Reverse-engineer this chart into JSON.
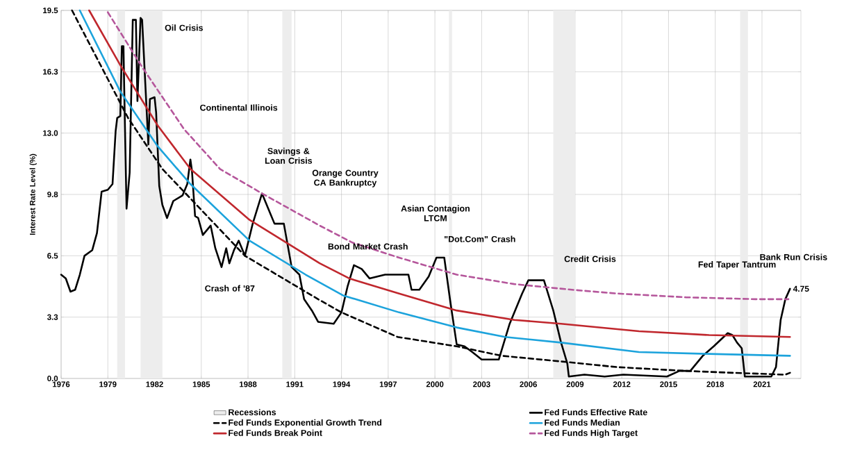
{
  "chart_data": {
    "type": "line",
    "ylabel": "Interest Rate Level (%)",
    "xlim": [
      1976,
      2023.5
    ],
    "ylim": [
      0,
      19.5
    ],
    "xticks": [
      1976,
      1979,
      1982,
      1985,
      1988,
      1991,
      1994,
      1997,
      2000,
      2003,
      2006,
      2009,
      2012,
      2015,
      2018,
      2021
    ],
    "yticks": [
      {
        "value": 0,
        "label": "0.0"
      },
      {
        "value": 3.25,
        "label": "3.3"
      },
      {
        "value": 6.5,
        "label": "6.5"
      },
      {
        "value": 9.75,
        "label": "9.8"
      },
      {
        "value": 13,
        "label": "13.0"
      },
      {
        "value": 16.25,
        "label": "16.3"
      },
      {
        "value": 19.5,
        "label": "19.5"
      }
    ],
    "grid": true,
    "legend": "bottom",
    "bands": [
      {
        "axis": "x",
        "from": 1979.6,
        "to": 1980.1,
        "label": "Recessions",
        "color": "#ededed"
      },
      {
        "axis": "x",
        "from": 1981.1,
        "to": 1982.5,
        "color": "#ededed"
      },
      {
        "axis": "x",
        "from": 1990.2,
        "to": 1990.8,
        "color": "#ededed"
      },
      {
        "axis": "x",
        "from": 2000.9,
        "to": 2001.1,
        "color": "#ededed"
      },
      {
        "axis": "x",
        "from": 2007.6,
        "to": 2009.0,
        "color": "#ededed"
      },
      {
        "axis": "x",
        "from": 2019.6,
        "to": 2020.1,
        "color": "#ededed"
      }
    ],
    "series": [
      {
        "name": "Fed Funds Effective Rate",
        "color": "#000000",
        "line_style": "solid",
        "x": [
          1976.0,
          1976.3,
          1976.6,
          1976.9,
          1977.2,
          1977.5,
          1978.0,
          1978.3,
          1978.6,
          1979.0,
          1979.3,
          1979.5,
          1979.6,
          1979.8,
          1979.9,
          1980.0,
          1980.2,
          1980.4,
          1980.6,
          1980.8,
          1980.9,
          1981.1,
          1981.2,
          1981.6,
          1981.7,
          1982.0,
          1982.1,
          1982.3,
          1982.5,
          1982.8,
          1983.2,
          1983.8,
          1984.1,
          1984.3,
          1984.4,
          1984.6,
          1984.8,
          1985.1,
          1985.6,
          1985.9,
          1986.3,
          1986.6,
          1986.8,
          1987.1,
          1987.4,
          1987.8,
          1988.3,
          1988.9,
          1989.3,
          1989.7,
          1990.3,
          1990.8,
          1991.3,
          1991.6,
          1992.1,
          1992.5,
          1993.5,
          1994.0,
          1994.4,
          1994.8,
          1995.3,
          1995.8,
          1996.8,
          1997.0,
          1998.3,
          1998.5,
          1999.0,
          1999.6,
          2000.1,
          2000.6,
          2001.0,
          2001.4,
          2001.9,
          2002.4,
          2003.0,
          2004.1,
          2004.8,
          2005.6,
          2006.0,
          2007.0,
          2007.6,
          2008.1,
          2008.5,
          2008.6,
          2009.6,
          2010.9,
          2012.1,
          2014.9,
          2015.7,
          2016.4,
          2017.2,
          2017.9,
          2018.8,
          2019.1,
          2019.4,
          2019.7,
          2019.9,
          2021.6,
          2021.9,
          2022.2,
          2022.5,
          2022.8
        ],
        "values": [
          5.5,
          5.3,
          4.6,
          4.7,
          5.5,
          6.5,
          6.8,
          7.7,
          9.9,
          10.0,
          10.3,
          13.1,
          13.8,
          13.9,
          17.6,
          17.6,
          9.0,
          10.9,
          19.0,
          19.0,
          14.7,
          19.1,
          19.0,
          12.4,
          14.8,
          14.9,
          14.1,
          10.2,
          9.2,
          8.5,
          9.4,
          9.7,
          10.3,
          11.6,
          11.0,
          8.6,
          8.5,
          7.6,
          8.1,
          6.9,
          5.9,
          6.9,
          6.1,
          6.8,
          7.3,
          6.5,
          8.2,
          9.8,
          9.0,
          8.2,
          8.2,
          5.9,
          5.5,
          4.2,
          3.6,
          3.0,
          2.9,
          3.5,
          4.9,
          6.0,
          5.8,
          5.3,
          5.5,
          5.5,
          5.5,
          4.7,
          4.7,
          5.4,
          6.4,
          6.4,
          4.0,
          1.8,
          1.7,
          1.4,
          1.0,
          1.0,
          2.9,
          4.5,
          5.2,
          5.2,
          3.6,
          1.9,
          0.8,
          0.1,
          0.2,
          0.1,
          0.2,
          0.1,
          0.4,
          0.4,
          1.2,
          1.7,
          2.4,
          2.3,
          1.9,
          1.6,
          0.1,
          0.1,
          0.6,
          3.1,
          4.2,
          4.75
        ],
        "value_labels": [
          null,
          null,
          null,
          null,
          null,
          null,
          null,
          null,
          null,
          null,
          null,
          null,
          null,
          null,
          null,
          null,
          null,
          null,
          null,
          null,
          null,
          null,
          null,
          null,
          null,
          null,
          null,
          null,
          null,
          null,
          null,
          null,
          null,
          null,
          null,
          null,
          null,
          null,
          null,
          null,
          null,
          null,
          null,
          null,
          null,
          null,
          null,
          null,
          null,
          null,
          null,
          null,
          null,
          null,
          null,
          null,
          null,
          null,
          null,
          null,
          null,
          null,
          null,
          null,
          null,
          null,
          null,
          null,
          null,
          null,
          null,
          null,
          null,
          null,
          null,
          null,
          null,
          null,
          null,
          null,
          null,
          null,
          null,
          null,
          null,
          null,
          null,
          null,
          null,
          null,
          null,
          null,
          null,
          null,
          null,
          null,
          null,
          null,
          null,
          null,
          null,
          "4.75"
        ]
      },
      {
        "name": "Fed Funds Exponential Growth Trend",
        "color": "#000000",
        "line_style": "dashed",
        "x": [
          1976.7,
          1980.3,
          1982.5,
          1987.8,
          1992.5,
          1994.0,
          1997.6,
          2001.4,
          2004.3,
          2008.1,
          2011.7,
          2016.1,
          2019.1,
          2022.5,
          2022.8
        ],
        "values": [
          19.5,
          13.8,
          11.1,
          6.5,
          4.2,
          3.5,
          2.2,
          1.7,
          1.2,
          0.9,
          0.6,
          0.4,
          0.3,
          0.2,
          0.3
        ]
      },
      {
        "name": "Fed Funds Median",
        "color": "#1ca3dc",
        "line_style": "solid",
        "x": [
          1977.2,
          1979.8,
          1982.2,
          1984.3,
          1988.1,
          1991.7,
          1994.1,
          1997.7,
          2001.4,
          2004.5,
          2008.1,
          2013.1,
          2017.6,
          2022.8
        ],
        "values": [
          19.5,
          15.2,
          12.3,
          10.3,
          7.3,
          5.5,
          4.4,
          3.5,
          2.7,
          2.2,
          1.9,
          1.4,
          1.3,
          1.2
        ]
      },
      {
        "name": "Fed Funds Break Point",
        "color": "#c0272d",
        "line_style": "solid",
        "x": [
          1977.8,
          1979.8,
          1982.2,
          1984.3,
          1988.1,
          1992.6,
          1994.5,
          1997.7,
          2001.4,
          2005.1,
          2008.1,
          2013.1,
          2017.6,
          2022.8
        ],
        "values": [
          19.5,
          16.6,
          13.4,
          11.1,
          8.4,
          6.1,
          5.3,
          4.5,
          3.6,
          3.1,
          2.9,
          2.5,
          2.3,
          2.2
        ]
      },
      {
        "name": "Fed Funds High Target",
        "color": "#b5569b",
        "line_style": "dashed",
        "x": [
          1979.0,
          1981.2,
          1983.9,
          1986.2,
          1988.9,
          1992.6,
          1994.7,
          1997.7,
          2001.4,
          2005.1,
          2008.8,
          2011.7,
          2016.1,
          2020.6,
          2022.7
        ],
        "values": [
          19.4,
          16.5,
          13.2,
          11.1,
          9.8,
          8.1,
          7.2,
          6.4,
          5.5,
          5.0,
          4.7,
          4.5,
          4.3,
          4.2,
          4.2
        ]
      }
    ],
    "annotations": [
      "Oil Crisis",
      "Continental Illinois",
      {
        "text": "Savings & Loan Crisis",
        "x": 1990.6,
        "y": 11.8
      },
      "Orange Country CA Bankruptcy",
      "Crash of '87",
      "Asian Contagion LTCM",
      {
        "text": "Bond Market Crash",
        "x": 1995.7,
        "y": 7.0
      },
      "\"Dot.Com\" Crash",
      "Credit Crisis",
      {
        "text": "Fed Taper Tantrum",
        "x": 2019.4,
        "y": 6.0
      },
      "Bank Run Crisis"
    ]
  }
}
